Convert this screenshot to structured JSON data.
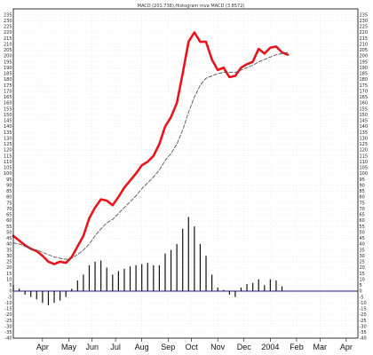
{
  "chart_data": {
    "type": "line",
    "title": "MACD (201.738),Histogram mva MACD (3.8572)",
    "xlabel": "",
    "ylabel": "",
    "ylim": [
      -40,
      240
    ],
    "y_ticks": [
      -40,
      -35,
      -30,
      -25,
      -20,
      -15,
      -10,
      -5,
      0,
      5,
      10,
      15,
      20,
      25,
      30,
      35,
      40,
      45,
      50,
      55,
      60,
      65,
      70,
      75,
      80,
      85,
      90,
      95,
      100,
      105,
      110,
      115,
      120,
      125,
      130,
      135,
      140,
      145,
      150,
      155,
      160,
      165,
      170,
      175,
      180,
      185,
      190,
      195,
      200,
      205,
      210,
      215,
      220,
      225,
      230,
      235
    ],
    "x_ticks": [
      "Apr",
      "May",
      "Jun",
      "Jul",
      "Aug",
      "Sep",
      "Oct",
      "Nov",
      "Dec",
      "2004",
      "Feb",
      "Mar",
      "Apr"
    ],
    "x_tick_pos": [
      5,
      9.5,
      13.5,
      17.5,
      22,
      26.5,
      30.5,
      35,
      39.5,
      44,
      48.5,
      52.5,
      57
    ],
    "x_range": [
      0,
      59
    ],
    "grid": true,
    "series": [
      {
        "color": "#e8141c",
        "style": "solid",
        "x": [
          0,
          1,
          2,
          3,
          4,
          5,
          6,
          7,
          8,
          9,
          10,
          11,
          12,
          13,
          14,
          15,
          16,
          17,
          18,
          19,
          20,
          21,
          22,
          23,
          24,
          25,
          26,
          27,
          28,
          29,
          30,
          31,
          32,
          33,
          34,
          35,
          36,
          37,
          38,
          39,
          40,
          41,
          42,
          43,
          44,
          45,
          46,
          47
        ],
        "values": [
          47,
          43,
          39,
          36,
          34,
          30,
          25,
          23,
          25,
          24,
          29,
          38,
          47,
          62,
          71,
          78,
          77,
          73,
          80,
          88,
          94,
          100,
          107,
          110,
          115,
          125,
          140,
          148,
          160,
          185,
          212,
          220,
          212,
          212,
          197,
          188,
          190,
          182,
          183,
          190,
          193,
          195,
          206,
          202,
          207,
          208,
          203,
          201
        ]
      },
      {
        "color": "#555555",
        "style": "dashed",
        "x": [
          0,
          1,
          2,
          3,
          4,
          5,
          6,
          7,
          8,
          9,
          10,
          11,
          12,
          13,
          14,
          15,
          16,
          17,
          18,
          19,
          20,
          21,
          22,
          23,
          24,
          25,
          26,
          27,
          28,
          29,
          30,
          31,
          32,
          33,
          34,
          35,
          36,
          37,
          38,
          39,
          40,
          41,
          42,
          43,
          44,
          45,
          46,
          47
        ],
        "values": [
          41,
          40,
          38,
          36,
          35,
          33,
          31,
          29,
          28,
          27,
          28,
          31,
          35,
          40,
          47,
          53,
          58,
          61,
          66,
          71,
          76,
          81,
          87,
          92,
          97,
          103,
          111,
          117,
          125,
          137,
          152,
          165,
          175,
          181,
          183,
          185,
          186,
          186,
          186,
          188,
          190,
          192,
          195,
          197,
          199,
          201,
          202,
          203
        ]
      }
    ],
    "histogram": {
      "color": "#111111",
      "x": [
        0,
        1,
        2,
        3,
        4,
        5,
        6,
        7,
        8,
        9,
        10,
        11,
        12,
        13,
        14,
        15,
        16,
        17,
        18,
        19,
        20,
        21,
        22,
        23,
        24,
        25,
        26,
        27,
        28,
        29,
        30,
        31,
        32,
        33,
        34,
        35,
        36,
        37,
        38,
        39,
        40,
        41,
        42,
        43,
        44,
        45,
        46,
        47
      ],
      "values": [
        5,
        2,
        -3,
        -5,
        -7,
        -10,
        -12,
        -10,
        -8,
        -5,
        2,
        9,
        14,
        22,
        25,
        26,
        20,
        14,
        17,
        19,
        21,
        22,
        23,
        24,
        22,
        22,
        32,
        35,
        40,
        53,
        63,
        55,
        40,
        30,
        14,
        3,
        1,
        -3,
        -5,
        3,
        6,
        7,
        10,
        5,
        10,
        9,
        4,
        0
      ]
    }
  }
}
